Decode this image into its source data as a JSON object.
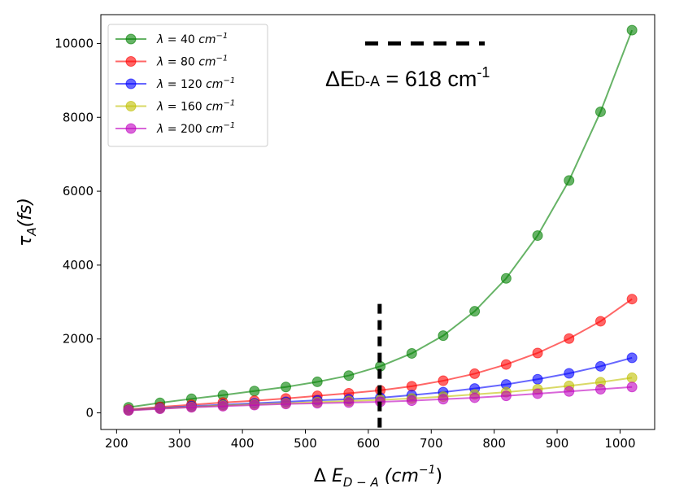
{
  "chart_data": {
    "type": "line",
    "xlabel": "Δ E_{D−A} (cm^{−1})",
    "ylabel": "τ_A(fs)",
    "xlim": [
      175,
      1055
    ],
    "ylim": [
      -450,
      10780
    ],
    "xticks": [
      200,
      300,
      400,
      500,
      600,
      700,
      800,
      900,
      1000
    ],
    "yticks": [
      0,
      2000,
      4000,
      6000,
      8000,
      10000
    ],
    "x": [
      219,
      269,
      319,
      369,
      419,
      469,
      519,
      569,
      619,
      669,
      719,
      769,
      819,
      869,
      919,
      969,
      1019
    ],
    "series": [
      {
        "name": "λ = 40 cm^{−1}",
        "lambda": "40",
        "color": "#008000",
        "values": [
          150,
          270,
          380,
          480,
          590,
          700,
          840,
          1010,
          1260,
          1610,
          2090,
          2750,
          3640,
          4800,
          6290,
          8150,
          10360
        ]
      },
      {
        "name": "λ = 80 cm^{−1}",
        "lambda": "80",
        "color": "#ff0000",
        "values": [
          90,
          160,
          220,
          280,
          330,
          390,
          460,
          530,
          610,
          720,
          870,
          1060,
          1310,
          1620,
          2010,
          2480,
          3080
        ]
      },
      {
        "name": "λ = 120 cm^{−1}",
        "lambda": "120",
        "color": "#0000ff",
        "values": [
          75,
          130,
          180,
          220,
          260,
          300,
          340,
          370,
          410,
          480,
          560,
          660,
          770,
          910,
          1070,
          1260,
          1490
        ]
      },
      {
        "name": "λ = 160 cm^{−1}",
        "lambda": "160",
        "color": "#bfbf00",
        "values": [
          70,
          120,
          160,
          200,
          230,
          260,
          290,
          320,
          350,
          390,
          440,
          500,
          560,
          640,
          730,
          830,
          950
        ]
      },
      {
        "name": "λ = 200 cm^{−1}",
        "lambda": "200",
        "color": "#bf00bf",
        "values": [
          65,
          110,
          150,
          180,
          210,
          240,
          260,
          280,
          300,
          330,
          370,
          410,
          460,
          520,
          580,
          640,
          700
        ]
      }
    ],
    "vline": {
      "x": 618,
      "y_from": -450,
      "y_to": 2950
    },
    "hline": {
      "y": 10000,
      "x_from": 595,
      "x_to": 785
    },
    "annotation": {
      "prefix": "ΔE",
      "subscript": "D-A",
      "middle": " = 618 cm",
      "superscript": "-1"
    },
    "legend": {
      "placement": "top-left",
      "lambda_symbol": "λ",
      "equals": " = ",
      "unit": "cm",
      "unit_exp": "−1"
    }
  },
  "axis_labels": {
    "x_prefix": "Δ ",
    "x_var": "E",
    "x_sub": "D − A",
    "x_unit_open": " (cm",
    "x_unit_exp": "−1",
    "x_unit_close": ")",
    "y_var": "τ",
    "y_sub": "A",
    "y_rest": "(fs)"
  }
}
